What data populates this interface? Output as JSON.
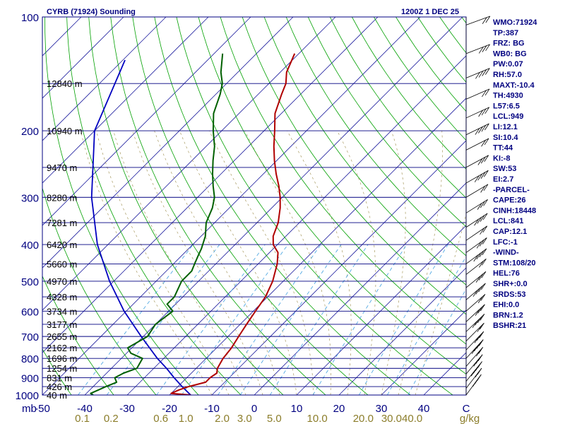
{
  "header": {
    "station": "CYRB (71924) Sounding",
    "time": "1200Z  1 DEC 25"
  },
  "colors": {
    "isobar": "#000080",
    "isotherm": "#2020a0",
    "dry_adiabat": "#00a000",
    "moist_adiabat": "#c0c0c0",
    "mixing_ratio": "#40a0e0",
    "temperature": "#b00000",
    "dewpoint": "#006000",
    "parcel": "#0000c0",
    "text": "#000080",
    "mixing_label": "#8b7d2a"
  },
  "chart_data": {
    "type": "skew-t",
    "title": "CYRB (71924) Sounding",
    "valid_time": "1200Z  1 DEC 25",
    "pressure_ticks": [
      "100",
      "200",
      "300",
      "400",
      "500",
      "600",
      "700",
      "800",
      "900",
      "1000"
    ],
    "pressure_values_hpa": [
      100,
      200,
      300,
      400,
      500,
      600,
      700,
      800,
      900,
      1000
    ],
    "height_labels": [
      {
        "p": 150,
        "label": "12840 m"
      },
      {
        "p": 200,
        "label": "10940 m"
      },
      {
        "p": 250,
        "label": "9470 m"
      },
      {
        "p": 300,
        "label": "8280 m"
      },
      {
        "p": 350,
        "label": "7281 m"
      },
      {
        "p": 400,
        "label": "6420 m"
      },
      {
        "p": 450,
        "label": "5660 m"
      },
      {
        "p": 500,
        "label": "4970 m"
      },
      {
        "p": 550,
        "label": "4328 m"
      },
      {
        "p": 600,
        "label": "3734 m"
      },
      {
        "p": 650,
        "label": "3177 m"
      },
      {
        "p": 700,
        "label": "2655 m"
      },
      {
        "p": 750,
        "label": "2162 m"
      },
      {
        "p": 800,
        "label": "1696 m"
      },
      {
        "p": 850,
        "label": "1254 m"
      },
      {
        "p": 900,
        "label": "831 m"
      },
      {
        "p": 950,
        "label": "426 m"
      },
      {
        "p": 1000,
        "label": "40 m"
      }
    ],
    "pressure_axis_unit": "mb",
    "temp_ticks": [
      "-50",
      "-40",
      "-30",
      "-20",
      "-10",
      "0",
      "10",
      "20",
      "30",
      "40",
      "C"
    ],
    "temp_values_c": [
      -50,
      -40,
      -30,
      -20,
      -10,
      0,
      10,
      20,
      30,
      40
    ],
    "mixing_ratio_ticks": [
      "0.1",
      "0.2",
      "0.6",
      "1.0",
      "2.0",
      "3.0",
      "5.0",
      "10.0",
      "20.0",
      "30.0",
      "40.0",
      "g/kg"
    ],
    "mixing_ratio_values": [
      0.1,
      0.2,
      0.6,
      1.0,
      2.0,
      3.0,
      5.0,
      10.0,
      20.0,
      30.0,
      40.0
    ],
    "temperature": [
      [
        1000,
        -15
      ],
      [
        990,
        -20
      ],
      [
        970,
        -19
      ],
      [
        950,
        -17.5
      ],
      [
        925,
        -14.5
      ],
      [
        900,
        -14.5
      ],
      [
        875,
        -14
      ],
      [
        850,
        -15
      ],
      [
        800,
        -16
      ],
      [
        750,
        -16.5
      ],
      [
        700,
        -17.5
      ],
      [
        650,
        -18.5
      ],
      [
        600,
        -19.5
      ],
      [
        550,
        -20.5
      ],
      [
        500,
        -22.5
      ],
      [
        450,
        -25.5
      ],
      [
        420,
        -28
      ],
      [
        400,
        -31
      ],
      [
        380,
        -33
      ],
      [
        350,
        -35
      ],
      [
        320,
        -38
      ],
      [
        300,
        -40.5
      ],
      [
        280,
        -43.5
      ],
      [
        260,
        -47
      ],
      [
        240,
        -50.5
      ],
      [
        220,
        -54
      ],
      [
        200,
        -57.5
      ],
      [
        180,
        -61.5
      ],
      [
        160,
        -64.5
      ],
      [
        150,
        -66
      ],
      [
        140,
        -68.5
      ],
      [
        125,
        -71
      ]
    ],
    "dewpoint": [
      [
        1000,
        -38
      ],
      [
        990,
        -39
      ],
      [
        970,
        -38
      ],
      [
        950,
        -37
      ],
      [
        925,
        -35.5
      ],
      [
        900,
        -37
      ],
      [
        875,
        -36
      ],
      [
        850,
        -34
      ],
      [
        800,
        -35
      ],
      [
        775,
        -39
      ],
      [
        750,
        -41
      ],
      [
        725,
        -40
      ],
      [
        700,
        -39
      ],
      [
        650,
        -40
      ],
      [
        600,
        -39
      ],
      [
        575,
        -42
      ],
      [
        550,
        -42
      ],
      [
        500,
        -44
      ],
      [
        470,
        -44
      ],
      [
        450,
        -45
      ],
      [
        430,
        -46
      ],
      [
        410,
        -47
      ],
      [
        380,
        -49
      ],
      [
        350,
        -52
      ],
      [
        320,
        -54
      ],
      [
        300,
        -56
      ],
      [
        280,
        -59
      ],
      [
        260,
        -62
      ],
      [
        240,
        -65
      ],
      [
        220,
        -68
      ],
      [
        200,
        -72
      ],
      [
        180,
        -76
      ],
      [
        160,
        -79
      ],
      [
        150,
        -81
      ],
      [
        140,
        -84
      ],
      [
        125,
        -88
      ]
    ],
    "parcel": [
      [
        1000,
        -15
      ],
      [
        950,
        -19
      ],
      [
        900,
        -23
      ],
      [
        850,
        -27
      ],
      [
        800,
        -31.5
      ],
      [
        700,
        -40.5
      ],
      [
        600,
        -50.5
      ],
      [
        500,
        -61
      ],
      [
        400,
        -72.5
      ],
      [
        300,
        -85
      ],
      [
        200,
        -100
      ],
      [
        130,
        -109.5
      ]
    ],
    "wind_levels_hpa": [
      105,
      125,
      145,
      165,
      185,
      205,
      225,
      250,
      275,
      300,
      330,
      360,
      390,
      420,
      450,
      480,
      520,
      560,
      600,
      640,
      680,
      720,
      760,
      800,
      840,
      880,
      920,
      960,
      1000
    ],
    "xlim": [
      -50,
      50
    ],
    "ylim": [
      1000,
      100
    ],
    "skew": "45 degrees",
    "y_scale": "log"
  },
  "indices": [
    "WMO:71924",
    "TP:387",
    "FRZ: BG",
    "WB0: BG",
    "PW:0.07",
    "RH:57.0",
    "MAXT:-10.4",
    "TH:4930",
    "L57:6.5",
    "LCL:949",
    "LI:12.1",
    "SI:10.4",
    "TT:44",
    "KI:-8",
    "SW:53",
    "EI:2.7",
    "-PARCEL-",
    "CAPE:26",
    "CINH:18448",
    "LCL:841",
    "CAP:12.1",
    "LFC:-1",
    "-WIND-",
    "STM:108/20",
    "HEL:76",
    "SHR+:0.0",
    "SRDS:53",
    "EHI:0.0",
    "BRN:1.2",
    "BSHR:21"
  ]
}
